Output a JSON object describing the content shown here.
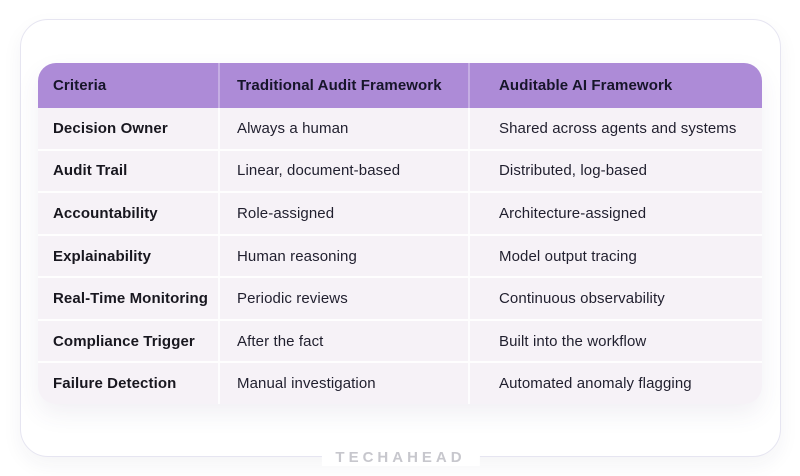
{
  "brand": {
    "logo_text": "TECHAHEAD"
  },
  "colors": {
    "page_background": "#ffffff",
    "card_border": "#e6e5f1",
    "header_background": "#ad8bd7",
    "header_text": "#17152a",
    "body_background": "#f6f2f7",
    "criteria_text": "#18171f",
    "cell_text": "#201f2e",
    "separator": "#ffffff",
    "logo_text_color": "#c7c7cd"
  },
  "chart_data": {
    "type": "table",
    "title": "",
    "columns": [
      "Criteria",
      "Traditional Audit Framework",
      "Auditable AI Framework"
    ],
    "rows": [
      [
        "Decision Owner",
        "Always a human",
        "Shared across agents and systems"
      ],
      [
        "Audit Trail",
        "Linear, document-based",
        "Distributed, log-based"
      ],
      [
        "Accountability",
        "Role-assigned",
        "Architecture-assigned"
      ],
      [
        "Explainability",
        "Human reasoning",
        "Model output tracing"
      ],
      [
        "Real-Time Monitoring",
        "Periodic reviews",
        "Continuous observability"
      ],
      [
        "Compliance Trigger",
        "After the fact",
        "Built into the workflow"
      ],
      [
        "Failure Detection",
        "Manual investigation",
        "Automated anomaly flagging"
      ]
    ],
    "layout_hints": {
      "header_style": "purple band with rounded top corners",
      "grid": "white 2px separators on light lavender body",
      "legend": "none"
    }
  }
}
